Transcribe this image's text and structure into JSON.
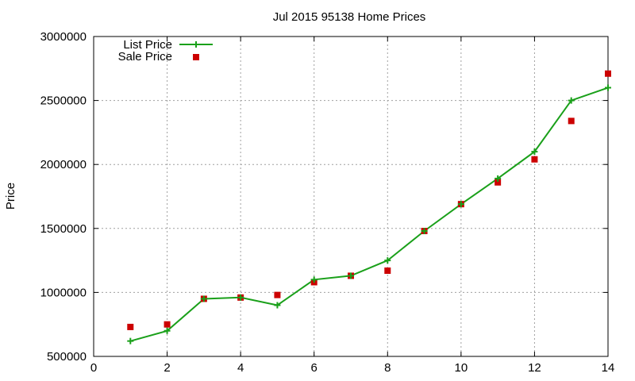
{
  "chart_data": {
    "type": "line",
    "title": "Jul 2015 95138 Home Prices",
    "xlabel": "",
    "ylabel": "Price",
    "xlim": [
      0,
      14
    ],
    "ylim": [
      500000,
      3000000
    ],
    "x_ticks": [
      "0",
      "2",
      "4",
      "6",
      "8",
      "10",
      "12",
      "14"
    ],
    "y_ticks": [
      "500000",
      "1000000",
      "1500000",
      "2000000",
      "2500000",
      "3000000"
    ],
    "grid": true,
    "legend_position": "top-left",
    "series": [
      {
        "name": "List Price",
        "kind": "line-with-plus-markers",
        "color": "#1aa01a",
        "x": [
          1,
          2,
          3,
          4,
          5,
          6,
          7,
          8,
          9,
          10,
          11,
          12,
          13,
          14
        ],
        "y": [
          620000,
          700000,
          950000,
          960000,
          900000,
          1100000,
          1130000,
          1250000,
          1480000,
          1690000,
          1890000,
          2100000,
          2500000,
          2600000
        ]
      },
      {
        "name": "Sale Price",
        "kind": "square-markers",
        "color": "#cc0000",
        "x": [
          1,
          2,
          3,
          4,
          5,
          6,
          7,
          8,
          9,
          10,
          11,
          12,
          13,
          14
        ],
        "y": [
          730000,
          750000,
          950000,
          960000,
          980000,
          1080000,
          1130000,
          1170000,
          1480000,
          1690000,
          1860000,
          2040000,
          2340000,
          2710000
        ]
      }
    ]
  }
}
